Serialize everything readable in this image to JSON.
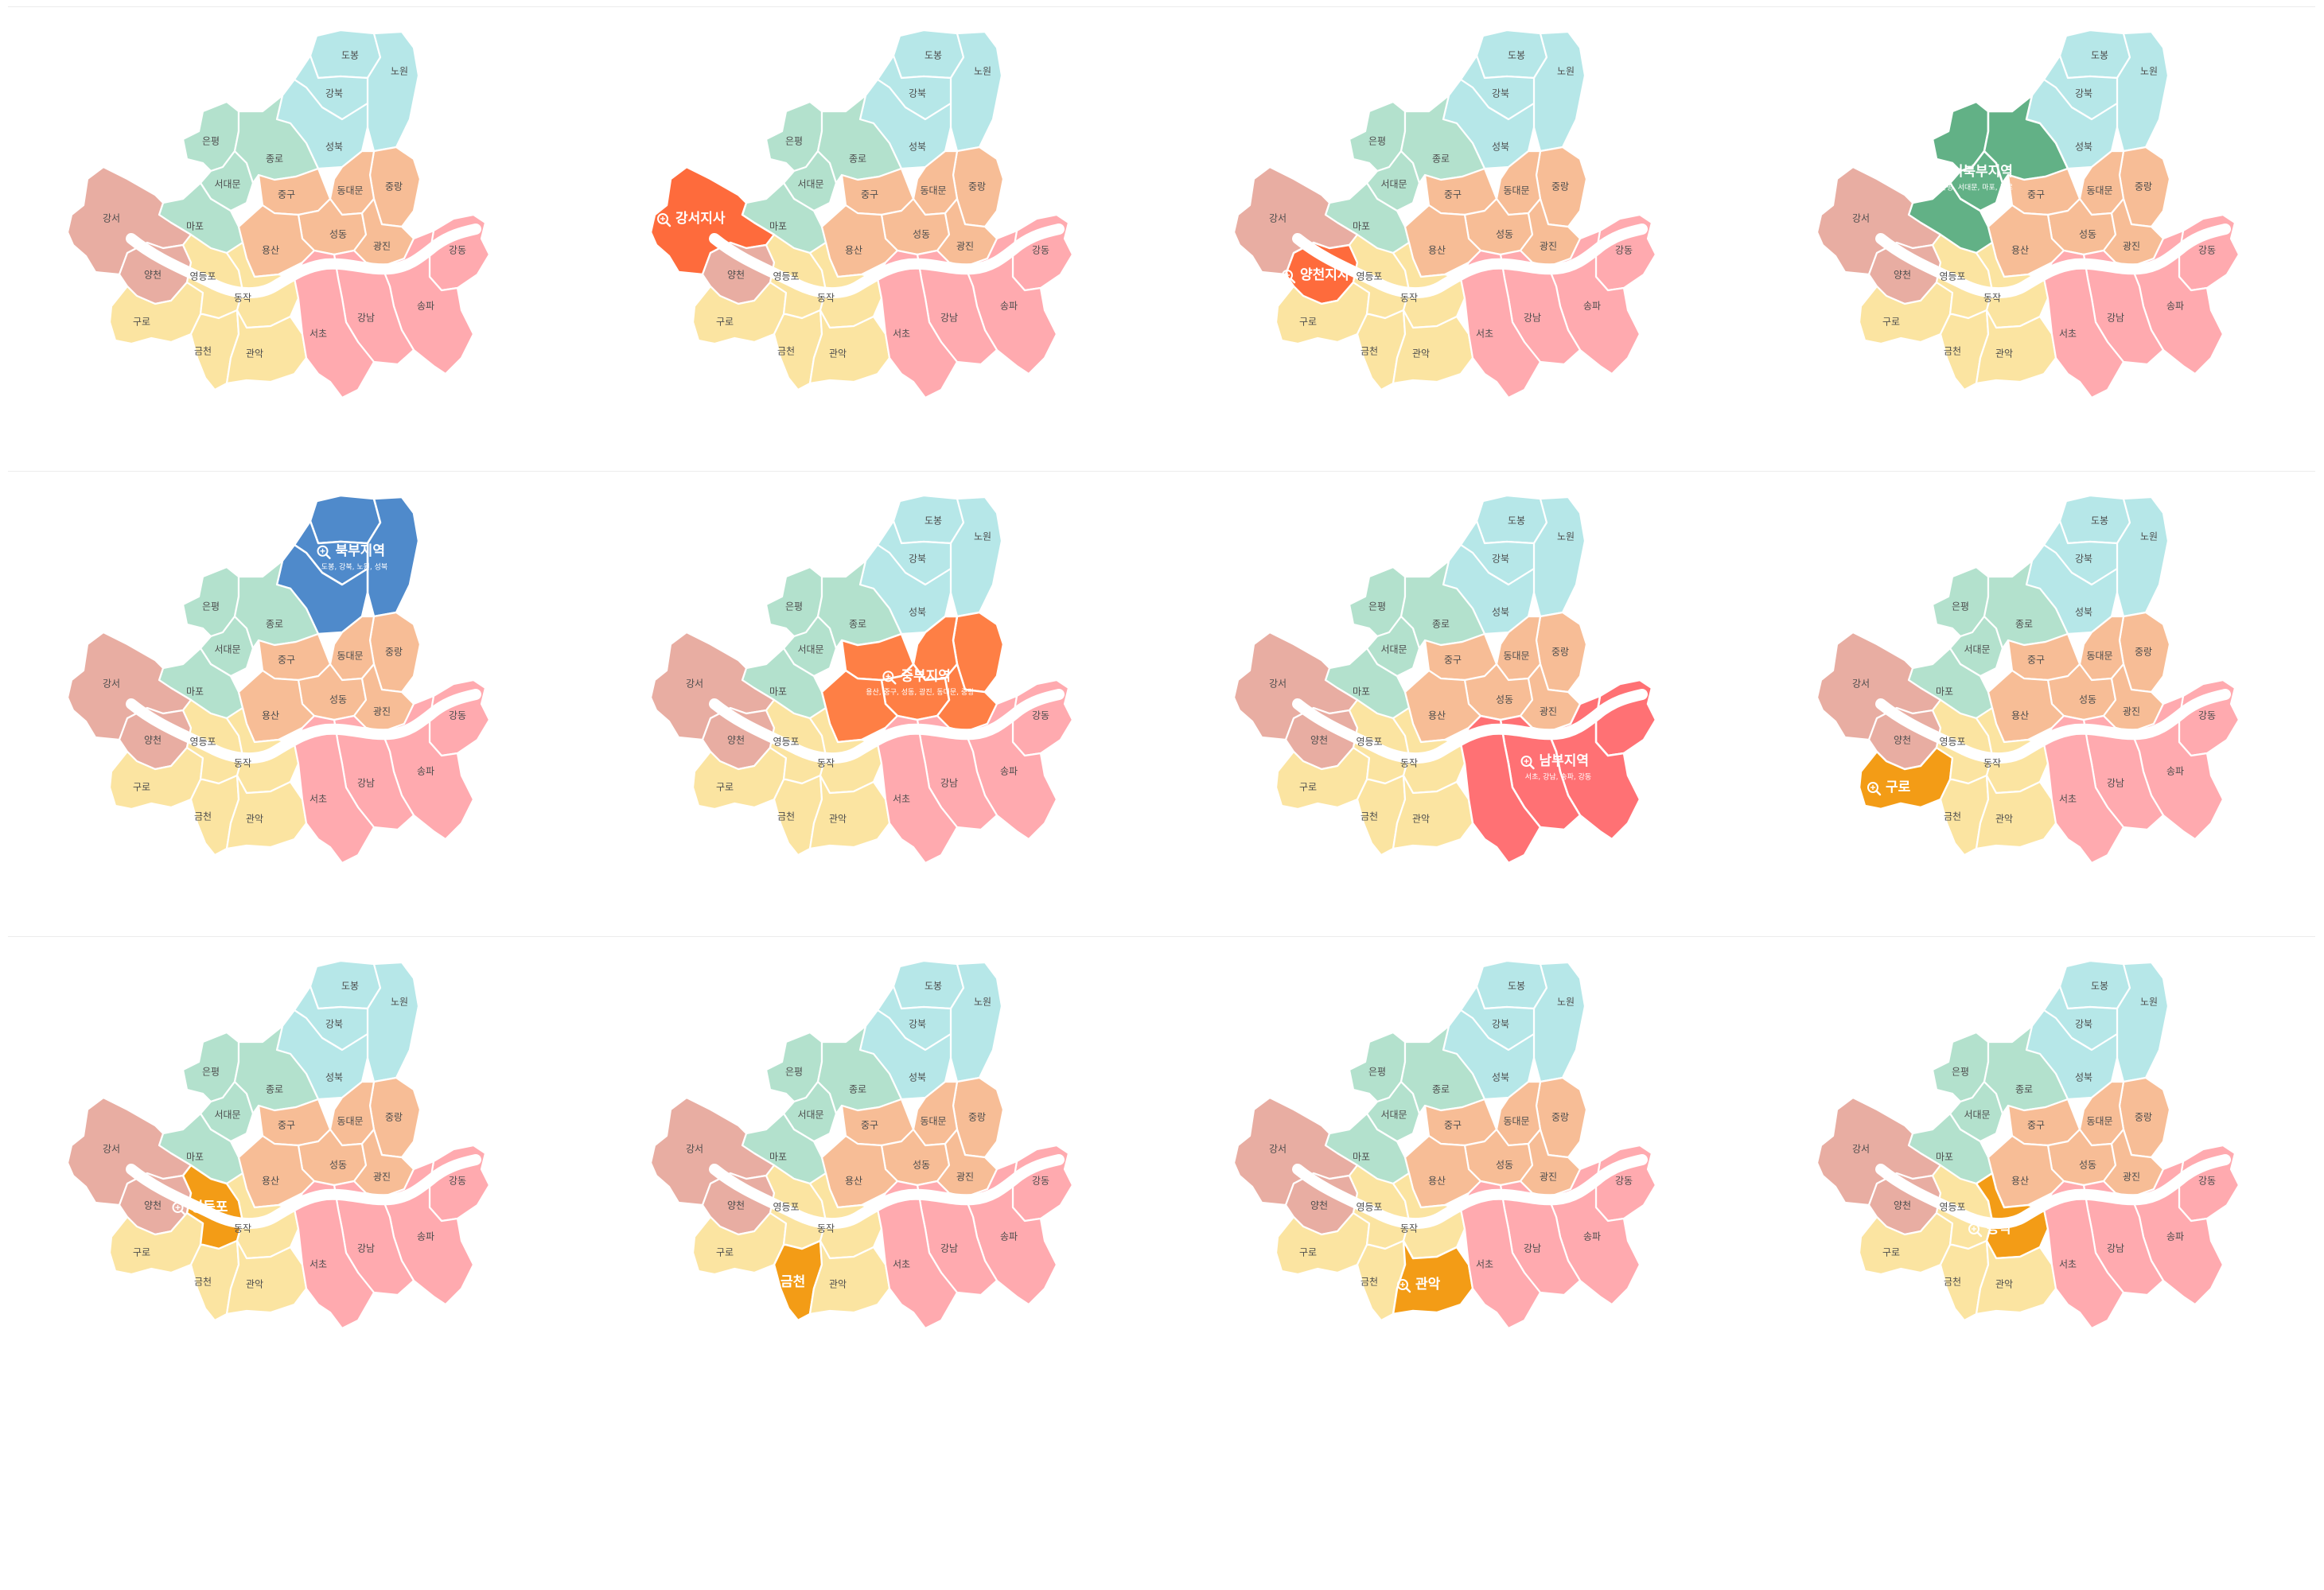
{
  "colors": {
    "northwest": "#b3e1cd",
    "north": "#b6e7e8",
    "central": "#f7bd96",
    "southwest": "#fbe4a1",
    "south": "#ffaaaf",
    "west": "#e8ada2",
    "highlight_region_northwest": "#62b186",
    "highlight_region_north": "#4f8acb",
    "highlight_region_central": "#fe7f45",
    "highlight_region_south": "#ff7174",
    "highlight_branch_red": "#fe6b3c",
    "highlight_branch_orange": "#f39c16"
  },
  "districts": [
    {
      "key": "dobong",
      "name": "도봉",
      "group": "north"
    },
    {
      "key": "nowon",
      "name": "노원",
      "group": "north"
    },
    {
      "key": "gangbuk",
      "name": "강북",
      "group": "north"
    },
    {
      "key": "seongbuk",
      "name": "성북",
      "group": "north"
    },
    {
      "key": "eunpyeong",
      "name": "은평",
      "group": "northwest"
    },
    {
      "key": "seodaemun",
      "name": "서대문",
      "group": "northwest"
    },
    {
      "key": "jongno",
      "name": "종로",
      "group": "northwest"
    },
    {
      "key": "mapo",
      "name": "마포",
      "group": "northwest"
    },
    {
      "key": "jungnang",
      "name": "중랑",
      "group": "central"
    },
    {
      "key": "dongdaemun",
      "name": "동대문",
      "group": "central"
    },
    {
      "key": "junggu",
      "name": "중구",
      "group": "central"
    },
    {
      "key": "seongdong",
      "name": "성동",
      "group": "central"
    },
    {
      "key": "gwangjin",
      "name": "광진",
      "group": "central"
    },
    {
      "key": "yongsan",
      "name": "용산",
      "group": "central"
    },
    {
      "key": "gangseo",
      "name": "강서",
      "group": "west"
    },
    {
      "key": "yangcheon",
      "name": "양천",
      "group": "west"
    },
    {
      "key": "guro",
      "name": "구로",
      "group": "southwest"
    },
    {
      "key": "yeongdeungpo",
      "name": "영등포",
      "group": "southwest"
    },
    {
      "key": "dongjak",
      "name": "동작",
      "group": "southwest"
    },
    {
      "key": "geumcheon",
      "name": "금천",
      "group": "southwest"
    },
    {
      "key": "gwanak",
      "name": "관악",
      "group": "southwest"
    },
    {
      "key": "gangdong",
      "name": "강동",
      "group": "south"
    },
    {
      "key": "songpa",
      "name": "송파",
      "group": "south"
    },
    {
      "key": "gangnam",
      "name": "강남",
      "group": "south"
    },
    {
      "key": "seocho",
      "name": "서초",
      "group": "south"
    }
  ],
  "panels": [
    {
      "highlight": null,
      "title": null,
      "subtitle": null
    },
    {
      "highlight": "gangseo",
      "title": "강서지사",
      "subtitle": null,
      "color": "highlight_branch_red"
    },
    {
      "highlight": "yangcheon",
      "title": "양천지사",
      "subtitle": null,
      "color": "highlight_branch_red"
    },
    {
      "highlight": "region_northwest",
      "title": "서북부지역",
      "subtitle": "은평, 서대문, 마포, 종로",
      "color": "highlight_region_northwest"
    },
    {
      "highlight": "region_north",
      "title": "북부지역",
      "subtitle": "도봉, 강북, 노원, 성북",
      "color": "highlight_region_north"
    },
    {
      "highlight": "region_central",
      "title": "중부지역",
      "subtitle": "용산, 중구, 성동, 광진, 동대문, 중랑",
      "color": "highlight_region_central"
    },
    {
      "highlight": "region_south",
      "title": "남부지역",
      "subtitle": "서초, 강남, 송파, 강동",
      "color": "highlight_region_south"
    },
    {
      "highlight": "guro",
      "title": "구로",
      "subtitle": null,
      "color": "highlight_branch_orange"
    },
    {
      "highlight": "yeongdeungpo",
      "title": "영등포",
      "subtitle": null,
      "color": "highlight_branch_orange"
    },
    {
      "highlight": "geumcheon",
      "title": "금천",
      "subtitle": null,
      "color": "highlight_branch_orange"
    },
    {
      "highlight": "gwanak",
      "title": "관악",
      "subtitle": null,
      "color": "highlight_branch_orange"
    },
    {
      "highlight": "dongjak",
      "title": "동작",
      "subtitle": null,
      "color": "highlight_branch_orange"
    }
  ]
}
